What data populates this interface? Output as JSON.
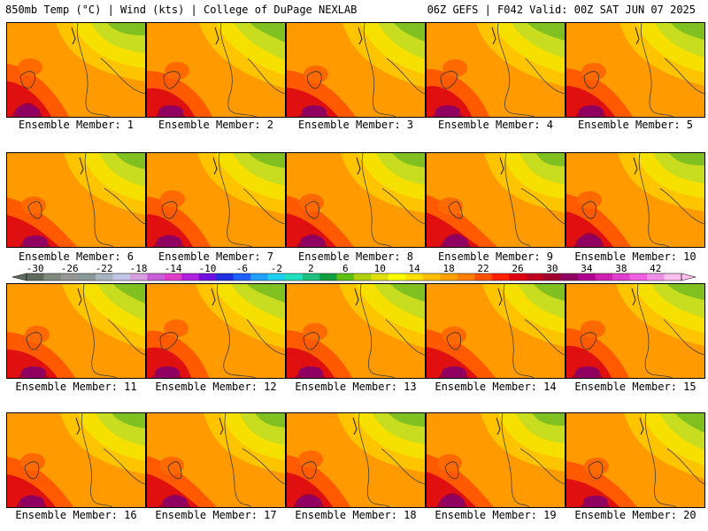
{
  "header": {
    "left": "850mb Temp (°C) | Wind (kts) | College of DuPage NEXLAB",
    "right": "06Z GEFS | F042 Valid: 00Z SAT JUN 07 2025"
  },
  "panels": [
    {
      "label": "Ensemble Member: 1"
    },
    {
      "label": "Ensemble Member: 2"
    },
    {
      "label": "Ensemble Member: 3"
    },
    {
      "label": "Ensemble Member: 4"
    },
    {
      "label": "Ensemble Member: 5"
    },
    {
      "label": "Ensemble Member: 6"
    },
    {
      "label": "Ensemble Member: 7"
    },
    {
      "label": "Ensemble Member: 8"
    },
    {
      "label": "Ensemble Member: 9"
    },
    {
      "label": "Ensemble Member: 10"
    },
    {
      "label": "Ensemble Member: 11"
    },
    {
      "label": "Ensemble Member: 12"
    },
    {
      "label": "Ensemble Member: 13"
    },
    {
      "label": "Ensemble Member: 14"
    },
    {
      "label": "Ensemble Member: 15"
    },
    {
      "label": "Ensemble Member: 16"
    },
    {
      "label": "Ensemble Member: 17"
    },
    {
      "label": "Ensemble Member: 18"
    },
    {
      "label": "Ensemble Member: 19"
    },
    {
      "label": "Ensemble Member: 20"
    }
  ],
  "colorbar": {
    "labels": [
      "-30",
      "-26",
      "-22",
      "-18",
      "-14",
      "-10",
      "-6",
      "-2",
      "2",
      "6",
      "10",
      "14",
      "18",
      "22",
      "26",
      "30",
      "34",
      "38",
      "42"
    ],
    "colors": [
      "#5f6b5f",
      "#7f8a7f",
      "#969696",
      "#8a9a9a",
      "#a8b4c0",
      "#c4c4e8",
      "#d89ee0",
      "#c860d8",
      "#e040c8",
      "#b020e0",
      "#7010e0",
      "#2030e0",
      "#2060ff",
      "#20a0ff",
      "#20d0f0",
      "#20e0c0",
      "#20c080",
      "#10a040",
      "#60c010",
      "#b0d010",
      "#e0e010",
      "#ffff00",
      "#ffe000",
      "#ffc000",
      "#ffa000",
      "#ff8000",
      "#ff5000",
      "#ff2000",
      "#e00010",
      "#c00020",
      "#a00030",
      "#900060",
      "#b00090",
      "#d020b0",
      "#e040d0",
      "#f060e0",
      "#f090e8",
      "#ffc0f0"
    ]
  }
}
